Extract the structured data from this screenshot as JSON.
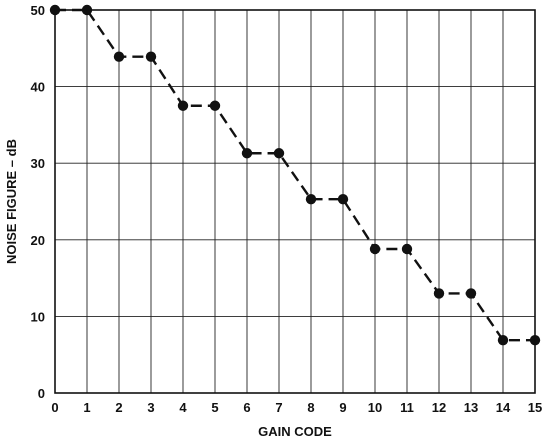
{
  "chart_data": {
    "type": "line",
    "xlabel": "GAIN CODE",
    "ylabel": "NOISE FIGURE – dB",
    "x": [
      0,
      1,
      2,
      3,
      4,
      5,
      6,
      7,
      8,
      9,
      10,
      11,
      12,
      13,
      14,
      15
    ],
    "series": [
      {
        "values": [
          50,
          50,
          43.9,
          43.9,
          37.5,
          37.5,
          31.3,
          31.3,
          25.3,
          25.3,
          18.8,
          18.8,
          13.0,
          13.0,
          6.9,
          6.9
        ]
      }
    ],
    "xlim": [
      0,
      15
    ],
    "ylim": [
      0,
      50
    ],
    "x_ticks": [
      "0",
      "1",
      "2",
      "3",
      "4",
      "5",
      "6",
      "7",
      "8",
      "9",
      "10",
      "11",
      "12",
      "13",
      "14",
      "15"
    ],
    "y_ticks": [
      "0",
      "10",
      "20",
      "30",
      "40",
      "50"
    ],
    "grid": true,
    "line_style": "dashed",
    "marker": "filled-circle",
    "colors": {
      "line": "#111111",
      "grid": "#222222",
      "background": "#ffffff"
    }
  }
}
